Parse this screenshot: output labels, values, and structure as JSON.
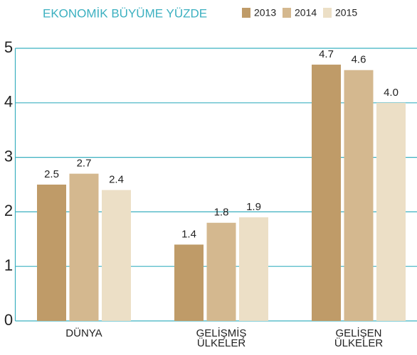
{
  "chart_data": {
    "type": "bar",
    "title": "EKONOMİK BÜYÜME YÜZDE",
    "categories": [
      "DÜNYA",
      "GELİŞMİŞ ÜLKELER",
      "GELİŞEN ÜLKELER"
    ],
    "series": [
      {
        "name": "2013",
        "color": "#bf9b68",
        "values": [
          2.5,
          1.4,
          4.7
        ]
      },
      {
        "name": "2014",
        "color": "#d4b88f",
        "values": [
          2.7,
          1.8,
          4.6
        ]
      },
      {
        "name": "2015",
        "color": "#ecdfc6",
        "values": [
          2.4,
          1.9,
          4.0
        ],
        "value_labels": [
          "2.4",
          "1.9",
          "4.0"
        ]
      }
    ],
    "ylim": [
      0,
      5
    ],
    "yticks": [
      0,
      1,
      2,
      3,
      4,
      5
    ],
    "grid": true,
    "grid_color": "#3bb0c0",
    "legend": "top"
  }
}
